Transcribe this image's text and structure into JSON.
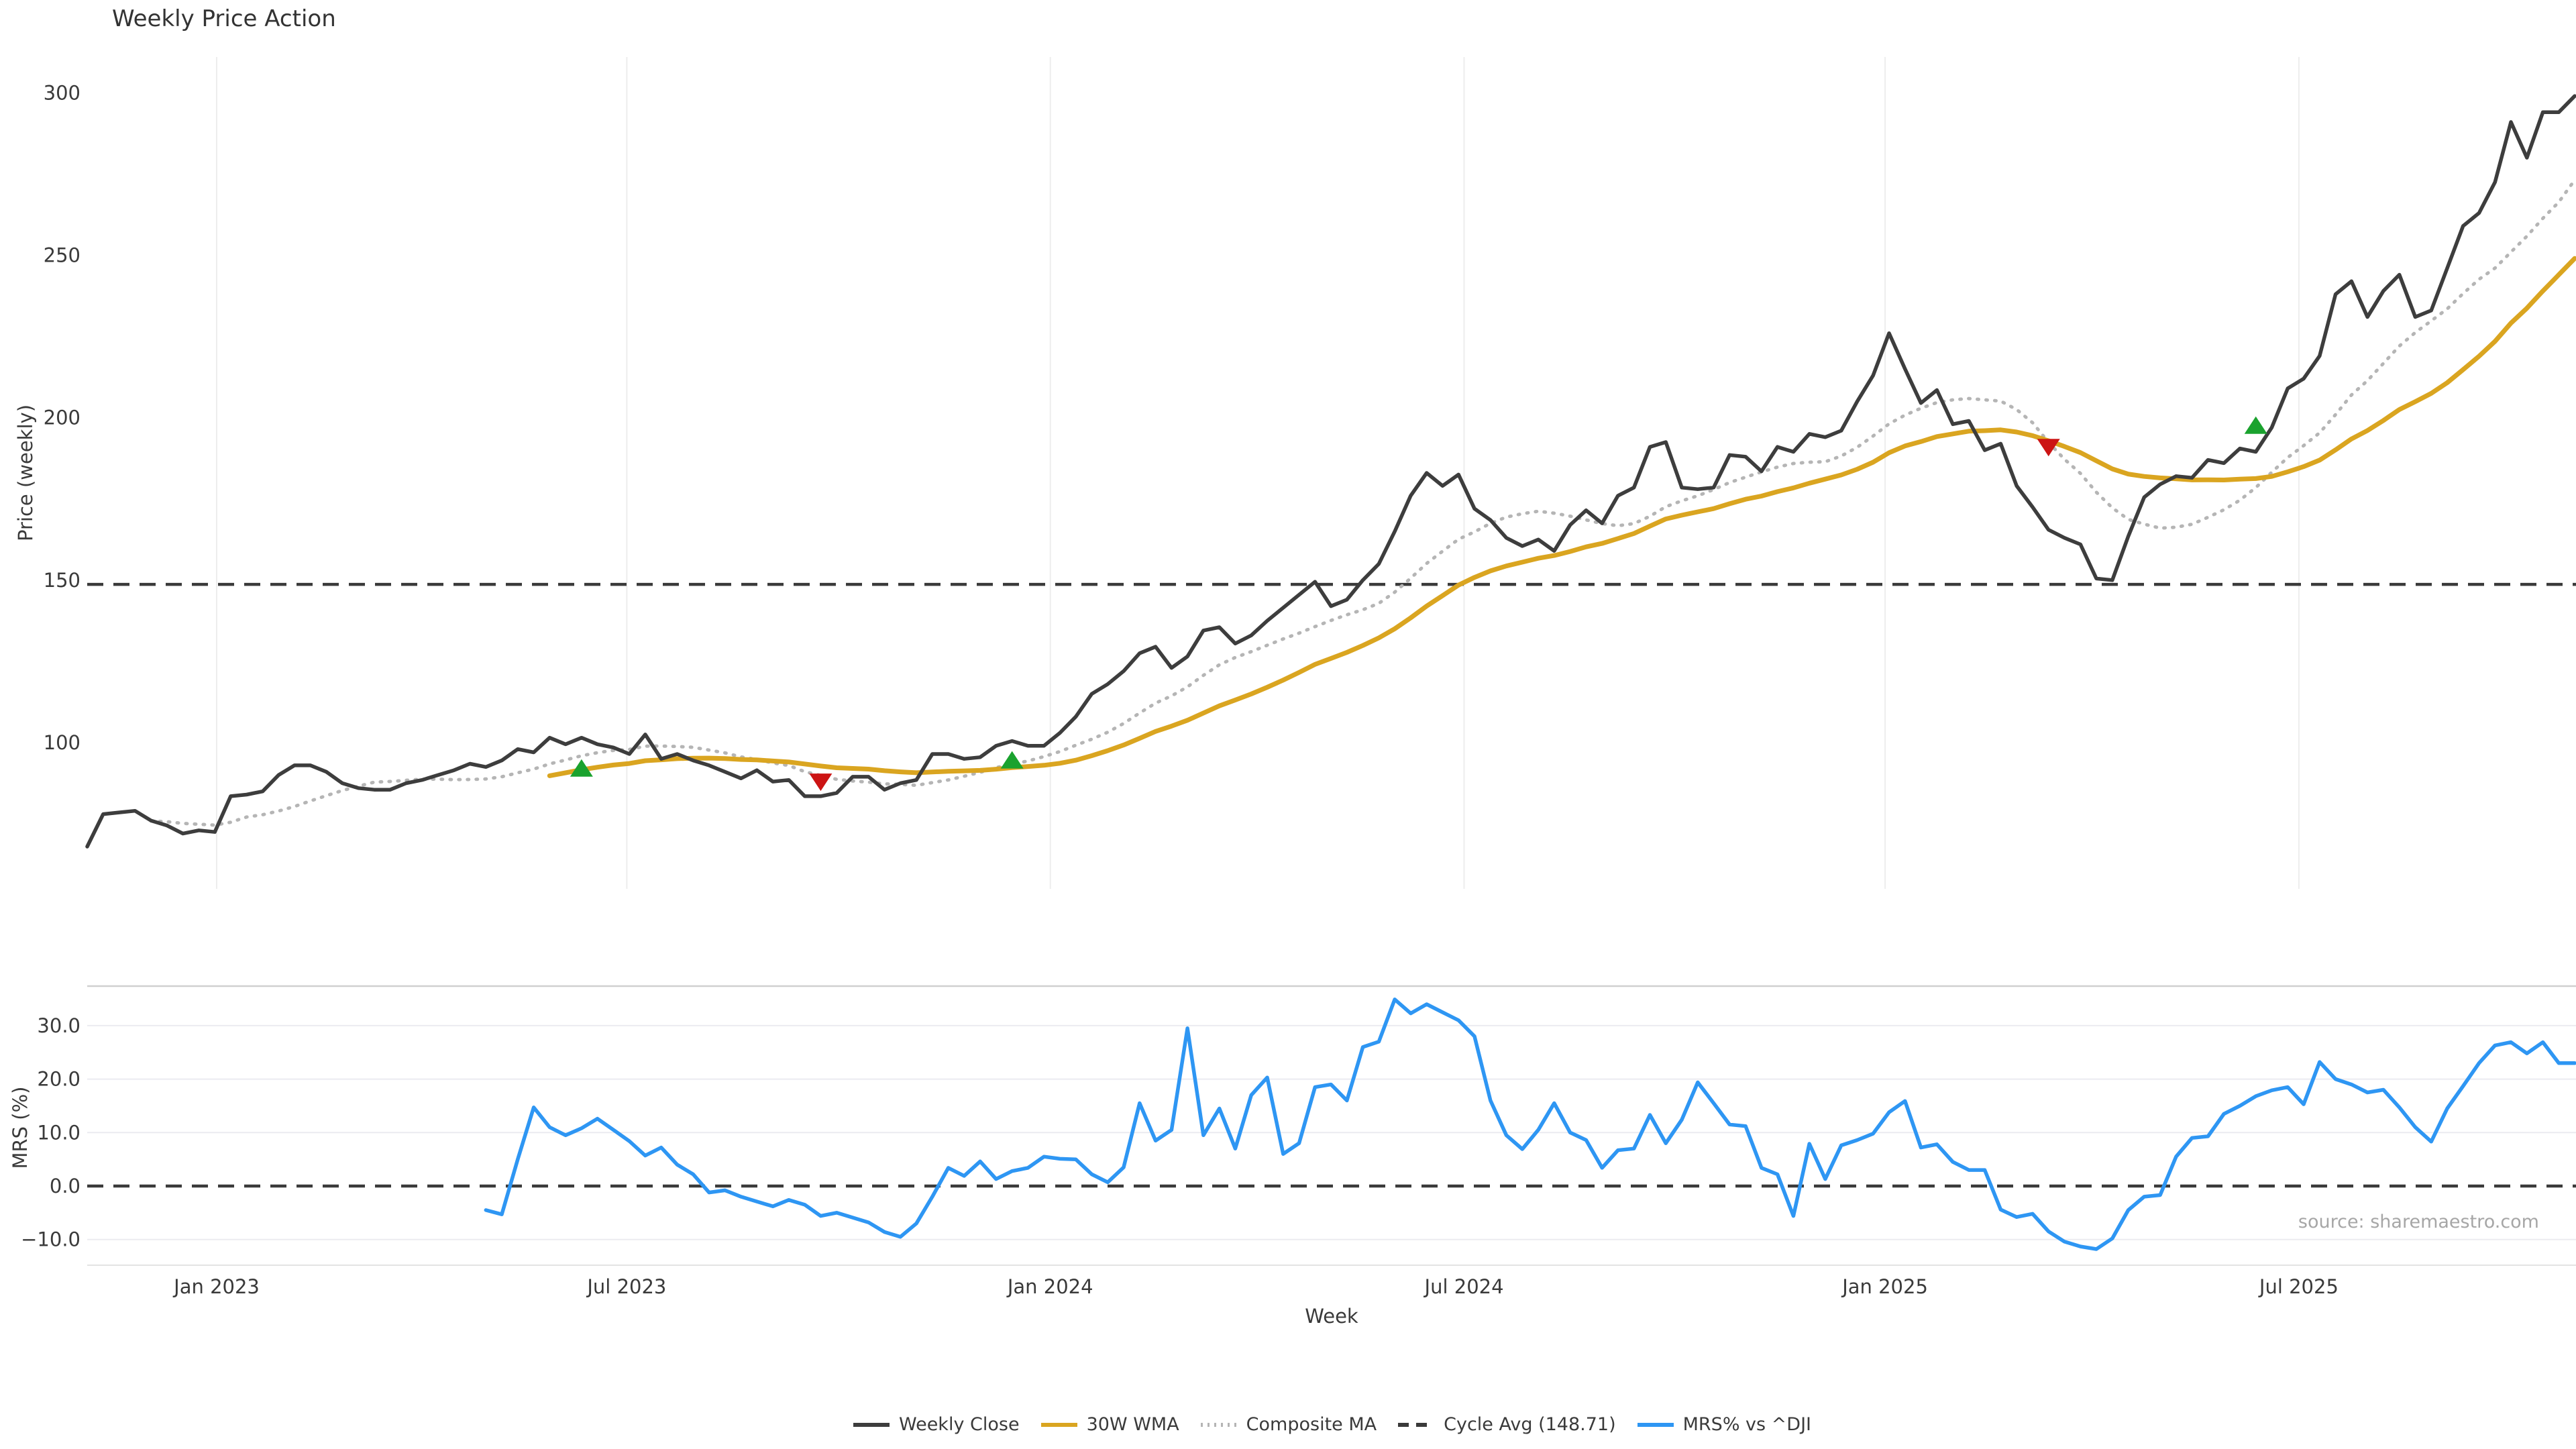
{
  "title": "Weekly Price Action",
  "source_text": "source: sharemaestro.com",
  "colors": {
    "weekly_close": "#3d3d3d",
    "wma_30w": "#DAA520",
    "composite_ma": "#b5b5b5",
    "cycle_avg": "#3a3a3a",
    "mrs_line": "#2e96f3",
    "buy_marker": "#1aa22e",
    "sell_marker": "#cc1414",
    "grid": "#ededed",
    "spine": "#d0d0d0",
    "bottom_spine": "#e3e3e3"
  },
  "legend": [
    {
      "label": "Weekly Close",
      "style": "solid",
      "color": "#3d3d3d"
    },
    {
      "label": "30W WMA",
      "style": "solid",
      "color": "#DAA520"
    },
    {
      "label": "Composite MA",
      "style": "dotted",
      "color": "#b5b5b5"
    },
    {
      "label": "Cycle Avg (148.71)",
      "style": "dashed",
      "color": "#3a3a3a"
    },
    {
      "label": "MRS% vs ^DJI",
      "style": "solid",
      "color": "#2e96f3"
    }
  ],
  "chart_data": {
    "type": "line",
    "title": "Weekly Price Action",
    "xlabel": "Week",
    "x_ticks": [
      {
        "label": "Jan 2023",
        "week": 8.12
      },
      {
        "label": "Jul 2023",
        "week": 33.84
      },
      {
        "label": "Jan 2024",
        "week": 60.4
      },
      {
        "label": "Jul 2024",
        "week": 86.35
      },
      {
        "label": "Jan 2025",
        "week": 112.75
      },
      {
        "label": "Jul 2025",
        "week": 138.7
      }
    ],
    "price_panel": {
      "ylabel": "Price (weekly)",
      "ylim": [
        55,
        311
      ],
      "y_ticks": [
        {
          "label": "100",
          "value": 100
        },
        {
          "label": "150",
          "value": 150
        },
        {
          "label": "200",
          "value": 200
        },
        {
          "label": "250",
          "value": 250
        },
        {
          "label": "300",
          "value": 300
        }
      ],
      "cycle_avg_value": 148.71,
      "weekly_close": [
        68,
        78,
        78.5,
        79,
        76,
        74.5,
        72,
        73,
        72.5,
        83.5,
        84,
        85,
        90,
        93,
        93,
        91,
        87.5,
        86,
        85.5,
        85.5,
        87.5,
        88.5,
        90,
        91.5,
        93.5,
        92.5,
        94.5,
        98,
        97,
        101.5,
        99.5,
        101.5,
        99.5,
        98.5,
        96.5,
        102.5,
        95,
        96.5,
        94.5,
        93,
        91,
        89,
        91.5,
        88,
        88.5,
        83.5,
        83.5,
        84.5,
        89.5,
        89.5,
        85.5,
        87.5,
        88.5,
        96.5,
        96.5,
        95,
        95.5,
        99,
        100.5,
        99,
        99,
        103,
        108,
        115,
        118,
        122,
        127.5,
        129.5,
        123,
        126.5,
        134.5,
        135.5,
        130.5,
        133,
        137.5,
        141.5,
        145.5,
        149.5,
        142,
        144,
        150,
        155,
        165,
        176,
        183,
        179,
        182.5,
        172,
        168.5,
        163,
        160.5,
        162.5,
        159,
        167,
        171.5,
        167.5,
        176,
        178.5,
        191,
        192.5,
        178.5,
        178,
        178.5,
        188.5,
        188,
        183.5,
        191,
        189.5,
        195,
        194,
        196,
        205,
        213,
        226,
        215,
        204.5,
        208.5,
        198,
        199,
        190,
        192,
        179,
        172.5,
        165.5,
        163,
        161,
        150.5,
        150,
        163.5,
        175.5,
        179.5,
        182,
        181.5,
        187,
        186,
        190.5,
        189.5,
        197,
        209,
        212,
        219,
        238,
        242,
        231,
        239,
        244,
        231,
        233,
        246,
        259,
        263,
        272.5,
        291,
        280,
        294,
        294,
        299
      ],
      "wma_30w_window": 30,
      "wma_30w_start_week": 29,
      "composite_ma_window": 10,
      "composite_ma_start_week": 4,
      "signal_markers": [
        {
          "week": 31,
          "price": 92,
          "type": "buy"
        },
        {
          "week": 46,
          "price": 88,
          "type": "sell"
        },
        {
          "week": 58,
          "price": 94.5,
          "type": "buy"
        },
        {
          "week": 123,
          "price": 191,
          "type": "sell"
        },
        {
          "week": 136,
          "price": 197.5,
          "type": "buy"
        }
      ]
    },
    "mrs_panel": {
      "ylabel": "MRS (%)",
      "ylim": [
        -14.7,
        37.4
      ],
      "y_ticks": [
        {
          "label": "30.0",
          "value": 30
        },
        {
          "label": "20.0",
          "value": 20
        },
        {
          "label": "10.0",
          "value": 10
        },
        {
          "label": "0.0",
          "value": 0
        },
        {
          "label": "−10.0",
          "value": -10
        }
      ],
      "zero_line": 0,
      "start_week": 25,
      "values": [
        -4.5,
        -5.3,
        5,
        14.7,
        11,
        9.5,
        10.8,
        12.6,
        10.5,
        8.4,
        5.7,
        7.2,
        4,
        2.2,
        -1.2,
        -0.8,
        -2,
        -2.9,
        -3.8,
        -2.6,
        -3.5,
        -5.6,
        -5,
        -5.9,
        -6.8,
        -8.6,
        -9.5,
        -7,
        -2,
        3.4,
        1.9,
        4.6,
        1.3,
        2.8,
        3.4,
        5.5,
        5.1,
        5,
        2.2,
        0.7,
        3.5,
        15.5,
        8.5,
        10.5,
        29.5,
        9.5,
        14.5,
        7,
        17,
        20.3,
        6,
        8,
        18.5,
        19,
        16,
        26,
        27,
        34.9,
        32.3,
        34,
        32.5,
        31,
        28,
        16,
        9.5,
        6.9,
        10.5,
        15.5,
        10,
        8.6,
        3.4,
        6.7,
        7,
        13.3,
        8,
        12.4,
        19.4,
        15.5,
        11.5,
        11.2,
        3.4,
        2.2,
        -5.6,
        7.9,
        1.3,
        7.6,
        8.6,
        9.8,
        13.8,
        15.9,
        7.2,
        7.8,
        4.5,
        3,
        3,
        -4.4,
        -5.8,
        -5.2,
        -8.5,
        -10.4,
        -11.3,
        -11.8,
        -9.8,
        -4.5,
        -2,
        -1.7,
        5.5,
        9,
        9.3,
        13.5,
        15,
        16.8,
        17.9,
        18.5,
        15.3,
        23.2,
        20,
        19,
        17.5,
        18,
        14.7,
        11,
        8.3,
        14.5,
        18.7,
        23,
        26.3,
        26.9,
        24.8,
        26.9,
        23,
        23
      ]
    }
  }
}
